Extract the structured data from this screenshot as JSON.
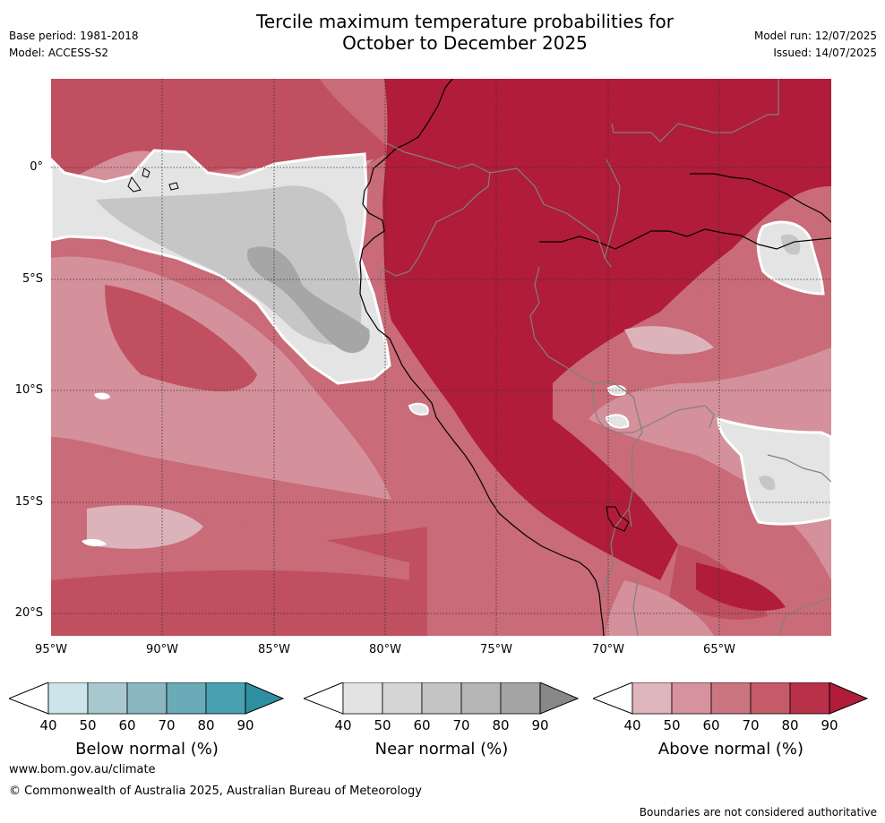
{
  "header": {
    "title_line1": "Tercile maximum temperature probabilities for",
    "title_line2": "October to December 2025",
    "base_period": "Base period: 1981-2018",
    "model": "Model: ACCESS-S2",
    "model_run": "Model run: 12/07/2025",
    "issued": "Issued: 14/07/2025"
  },
  "map": {
    "lat_labels": [
      "0°",
      "5°S",
      "10°S",
      "15°S",
      "20°S"
    ],
    "lon_labels": [
      "95°W",
      "90°W",
      "85°W",
      "80°W",
      "75°W",
      "70°W",
      "65°W"
    ],
    "colors": {
      "above_50": "#dcb3ba",
      "above_60": "#d4919b",
      "above_70": "#c96b79",
      "above_80": "#c0505f",
      "above_90": "#b01c39",
      "near_50": "#e4e4e4",
      "near_60": "#d6d6d6",
      "near_70": "#c6c6c6",
      "near_80": "#a6a6a6"
    }
  },
  "colorbars": [
    {
      "name": "Below normal (%)",
      "ticks": [
        "40",
        "50",
        "60",
        "70",
        "80",
        "90"
      ],
      "colors": [
        "#cde5ea",
        "#a8c9cf",
        "#8ab7c2",
        "#6aabb8",
        "#47a1b0",
        "#2e8fa0"
      ]
    },
    {
      "name": "Near normal (%)",
      "ticks": [
        "40",
        "50",
        "60",
        "70",
        "80",
        "90"
      ],
      "colors": [
        "#e3e3e3",
        "#d5d5d5",
        "#c4c4c4",
        "#b5b5b5",
        "#a4a4a4",
        "#888888"
      ]
    },
    {
      "name": "Above normal (%)",
      "ticks": [
        "40",
        "50",
        "60",
        "70",
        "80",
        "90"
      ],
      "colors": [
        "#deb5bb",
        "#d6939d",
        "#cb7580",
        "#c55a69",
        "#b83148",
        "#b01c39"
      ]
    }
  ],
  "footer": {
    "website": "www.bom.gov.au/climate",
    "copyright": "© Commonwealth of Australia 2025, Australian Bureau of Meteorology",
    "disclaimer": "Boundaries are not considered authoritative"
  }
}
